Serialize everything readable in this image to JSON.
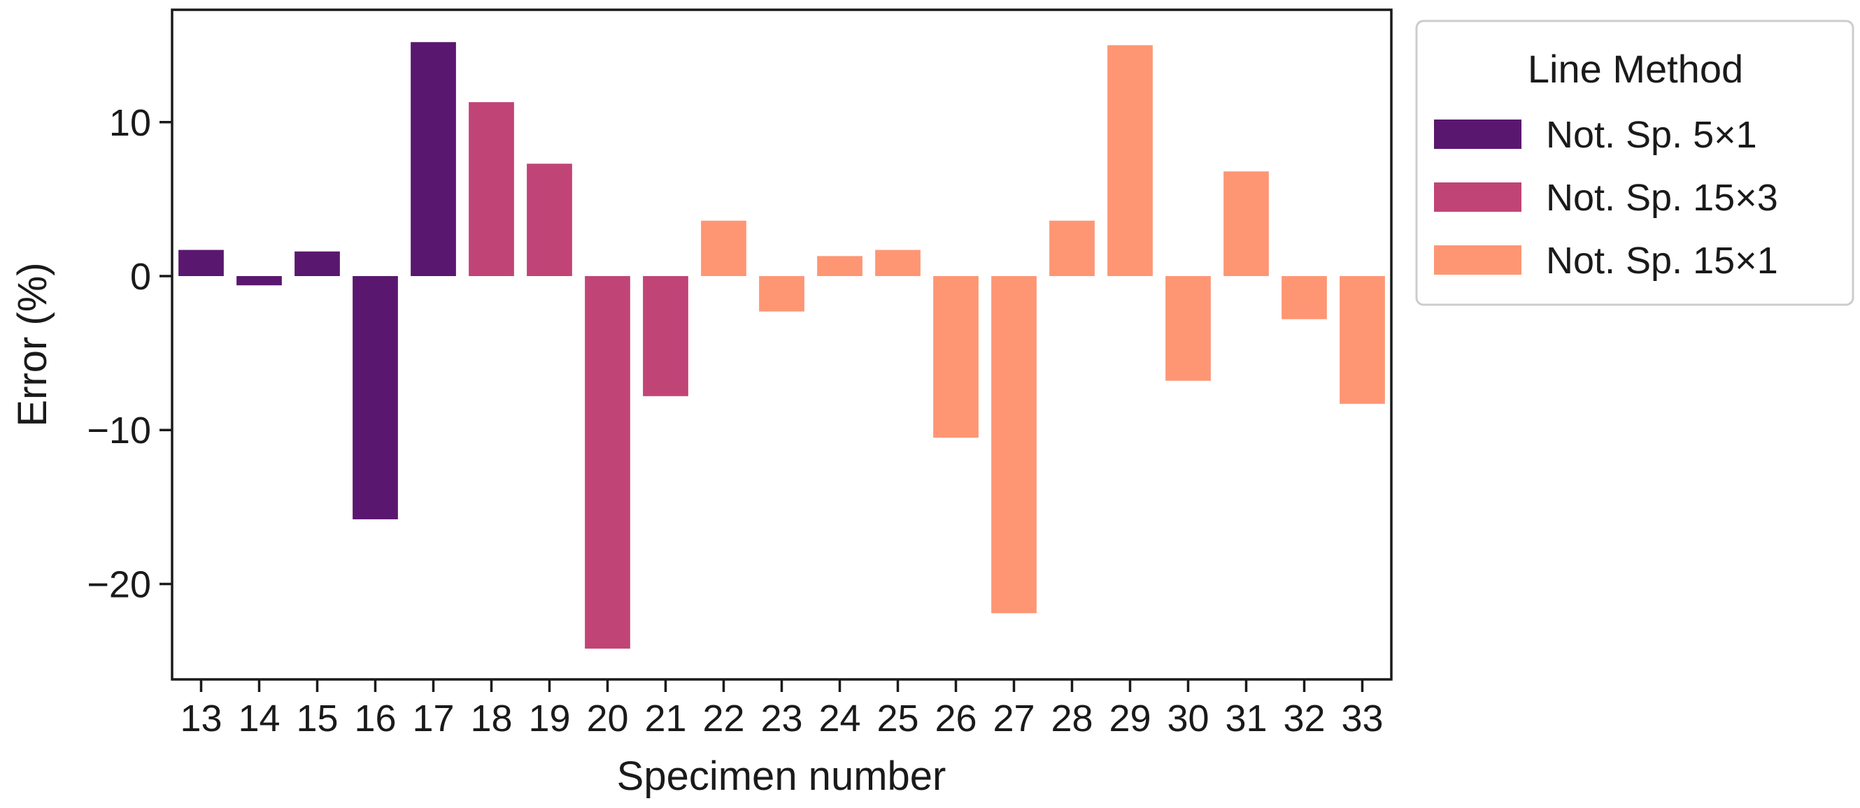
{
  "chart_data": {
    "type": "bar",
    "xlabel": "Specimen number",
    "ylabel": "Error (%)",
    "ylim": [
      -26.2,
      17.3
    ],
    "yticks": [
      10,
      0,
      -10,
      -20
    ],
    "ytick_labels": [
      "10",
      "0",
      "−10",
      "−20"
    ],
    "categories": [
      "13",
      "14",
      "15",
      "16",
      "17",
      "18",
      "19",
      "20",
      "21",
      "22",
      "23",
      "24",
      "25",
      "26",
      "27",
      "28",
      "29",
      "30",
      "31",
      "32",
      "33"
    ],
    "values": [
      1.7,
      -0.6,
      1.6,
      -15.8,
      15.2,
      11.3,
      7.3,
      -24.2,
      -7.8,
      3.6,
      -2.3,
      1.3,
      1.7,
      -10.5,
      -21.9,
      3.6,
      15.0,
      -6.8,
      6.8,
      -2.8,
      -8.3
    ],
    "groups": [
      "Not. Sp. 5×1",
      "Not. Sp. 5×1",
      "Not. Sp. 5×1",
      "Not. Sp. 5×1",
      "Not. Sp. 5×1",
      "Not. Sp. 15×3",
      "Not. Sp. 15×3",
      "Not. Sp. 15×3",
      "Not. Sp. 15×3",
      "Not. Sp. 15×1",
      "Not. Sp. 15×1",
      "Not. Sp. 15×1",
      "Not. Sp. 15×1",
      "Not. Sp. 15×1",
      "Not. Sp. 15×1",
      "Not. Sp. 15×1",
      "Not. Sp. 15×1",
      "Not. Sp. 15×1",
      "Not. Sp. 15×1",
      "Not. Sp. 15×1",
      "Not. Sp. 15×1"
    ],
    "legend": {
      "title": "Line Method",
      "placement": "outside-right-top",
      "entries": [
        {
          "label": "Not. Sp. 5×1",
          "color": "#5a176f"
        },
        {
          "label": "Not. Sp. 15×3",
          "color": "#c14477"
        },
        {
          "label": "Not. Sp. 15×1",
          "color": "#fe9674"
        }
      ]
    },
    "grid": false
  }
}
